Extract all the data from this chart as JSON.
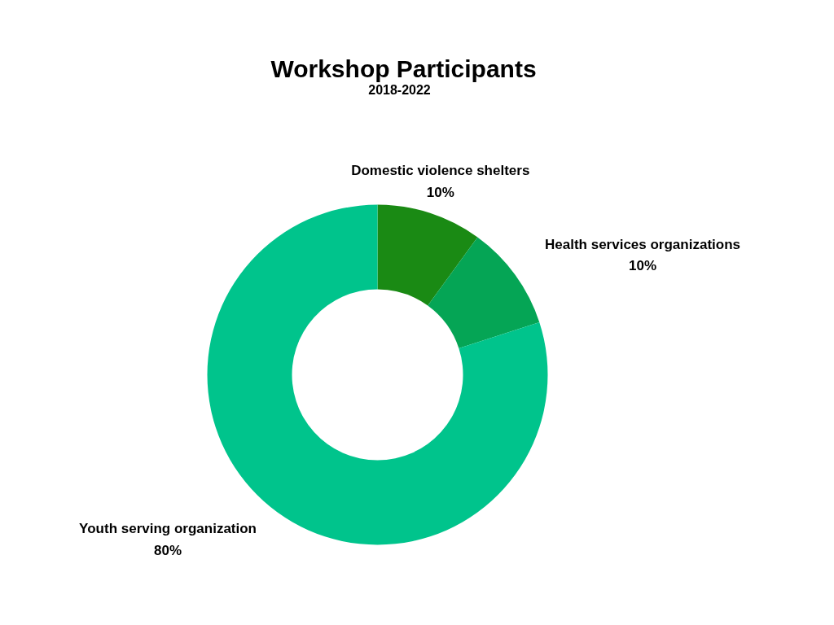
{
  "chart_data": {
    "type": "donut",
    "title": "Workshop Participants",
    "subtitle": "2018-2022",
    "categories": [
      "Domestic violence shelters",
      "Health services organizations",
      "Youth serving organization"
    ],
    "values": [
      10,
      10,
      80
    ],
    "colors": [
      "#1a8a14",
      "#05a555",
      "#00c48c"
    ],
    "value_labels": [
      "10%",
      "10%",
      "80%"
    ]
  }
}
